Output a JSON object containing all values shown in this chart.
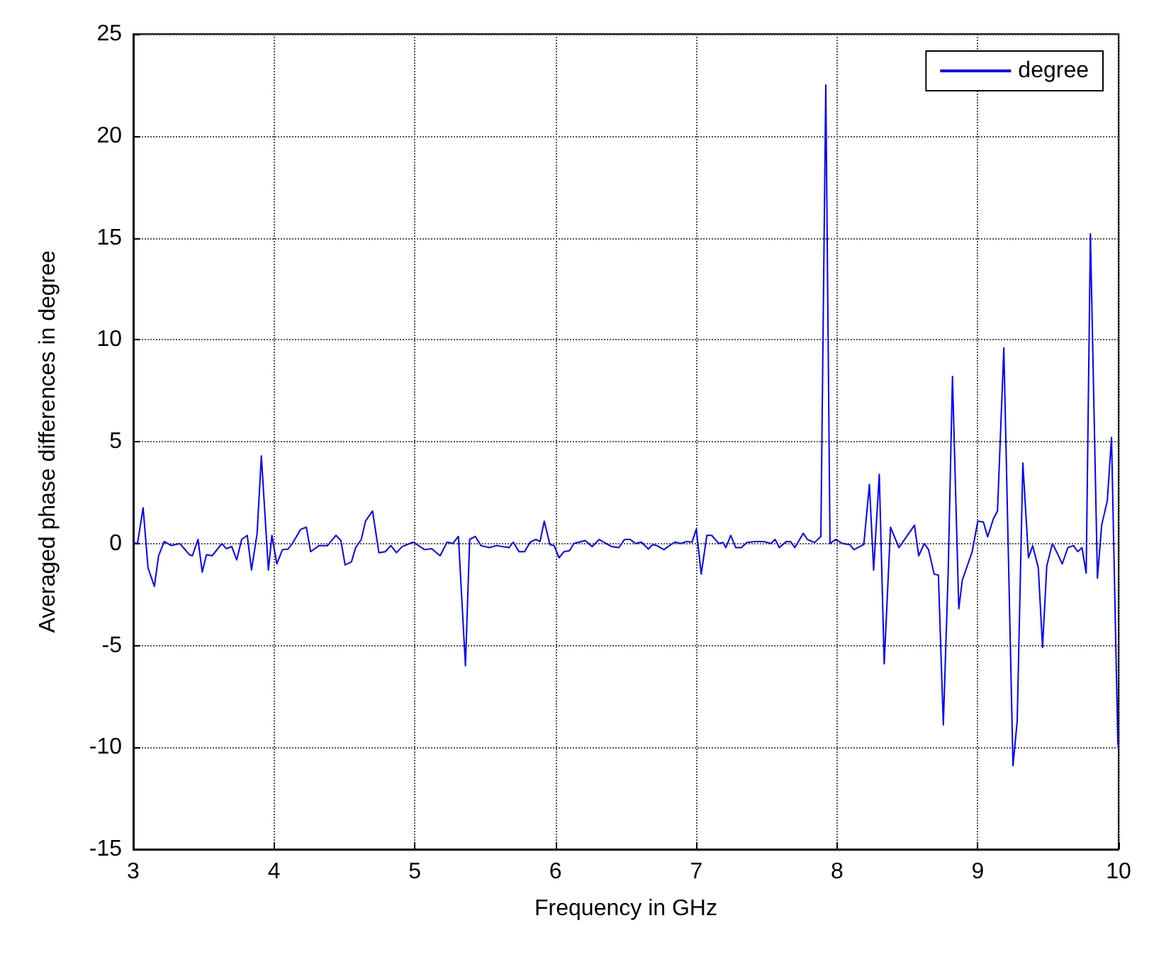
{
  "chart_data": {
    "type": "line",
    "xlabel": "Frequency in GHz",
    "ylabel": "Averaged phase differences in degree",
    "xlim": [
      3,
      10
    ],
    "ylim": [
      -15,
      25
    ],
    "xticks": [
      3,
      4,
      5,
      6,
      7,
      8,
      9,
      10
    ],
    "yticks": [
      -15,
      -10,
      -5,
      0,
      5,
      10,
      15,
      20,
      25
    ],
    "grid": true,
    "legend": "top right",
    "marker": "none",
    "line_style": "solid",
    "series": [
      {
        "name": "degree",
        "color": "#0000ff",
        "x": [
          3.0,
          3.03,
          3.07,
          3.105,
          3.15,
          3.18,
          3.22,
          3.27,
          3.33,
          3.4,
          3.42,
          3.46,
          3.49,
          3.52,
          3.56,
          3.63,
          3.66,
          3.7,
          3.735,
          3.77,
          3.81,
          3.84,
          3.88,
          3.91,
          3.96,
          3.985,
          4.02,
          4.06,
          4.1,
          4.13,
          4.19,
          4.23,
          4.26,
          4.32,
          4.38,
          4.44,
          4.475,
          4.505,
          4.55,
          4.58,
          4.62,
          4.65,
          4.7,
          4.745,
          4.79,
          4.83,
          4.87,
          4.91,
          4.99,
          5.07,
          5.12,
          5.18,
          5.23,
          5.27,
          5.31,
          5.36,
          5.39,
          5.43,
          5.47,
          5.53,
          5.58,
          5.67,
          5.7,
          5.74,
          5.78,
          5.82,
          5.86,
          5.89,
          5.92,
          5.96,
          5.99,
          6.025,
          6.06,
          6.1,
          6.13,
          6.21,
          6.26,
          6.31,
          6.36,
          6.4,
          6.45,
          6.49,
          6.53,
          6.57,
          6.61,
          6.66,
          6.69,
          6.72,
          6.77,
          6.82,
          6.85,
          6.89,
          6.93,
          6.97,
          7.0,
          7.035,
          7.075,
          7.11,
          7.16,
          7.19,
          7.21,
          7.245,
          7.28,
          7.32,
          7.36,
          7.42,
          7.48,
          7.53,
          7.56,
          7.59,
          7.64,
          7.67,
          7.7,
          7.76,
          7.79,
          7.84,
          7.885,
          7.92,
          7.95,
          7.99,
          8.04,
          8.09,
          8.12,
          8.19,
          8.23,
          8.26,
          8.3,
          8.335,
          8.38,
          8.44,
          8.55,
          8.58,
          8.62,
          8.65,
          8.69,
          8.72,
          8.755,
          8.79,
          8.82,
          8.865,
          8.89,
          8.93,
          8.96,
          9.0,
          9.04,
          9.07,
          9.11,
          9.14,
          9.185,
          9.25,
          9.28,
          9.32,
          9.36,
          9.39,
          9.43,
          9.46,
          9.49,
          9.53,
          9.57,
          9.6,
          9.64,
          9.68,
          9.71,
          9.74,
          9.77,
          9.8,
          9.85,
          9.88,
          9.92,
          9.95,
          9.995,
          10.0
        ],
        "values": [
          0.05,
          0,
          1.75,
          -1.2,
          -2.1,
          -0.6,
          0.1,
          -0.1,
          0,
          -0.55,
          -0.6,
          0.2,
          -1.4,
          -0.55,
          -0.6,
          0,
          -0.25,
          -0.15,
          -0.8,
          0.2,
          0.4,
          -1.3,
          0.5,
          4.3,
          -1.3,
          0.4,
          -1.0,
          -0.3,
          -0.27,
          0,
          0.7,
          0.8,
          -0.4,
          -0.1,
          -0.1,
          0.4,
          0.15,
          -1.05,
          -0.9,
          -0.2,
          0.2,
          1.1,
          1.6,
          -0.45,
          -0.4,
          -0.1,
          -0.45,
          -0.15,
          0.07,
          -0.3,
          -0.25,
          -0.6,
          0.07,
          0,
          0.35,
          -6.0,
          0.2,
          0.35,
          -0.1,
          -0.2,
          -0.1,
          -0.2,
          0.07,
          -0.4,
          -0.4,
          0.07,
          0.2,
          0.1,
          1.1,
          -0.05,
          -0.1,
          -0.7,
          -0.4,
          -0.35,
          0,
          0.15,
          -0.15,
          0.2,
          0,
          -0.15,
          -0.2,
          0.2,
          0.2,
          0,
          0.07,
          -0.27,
          -0.05,
          -0.1,
          -0.3,
          -0.05,
          0.07,
          0,
          0.1,
          0.07,
          0.7,
          -1.5,
          0.4,
          0.4,
          0,
          0.05,
          -0.2,
          0.4,
          -0.2,
          -0.2,
          0.05,
          0.1,
          0.1,
          0,
          0.2,
          -0.2,
          0.1,
          0.1,
          -0.2,
          0.5,
          0.2,
          0.05,
          0.35,
          22.5,
          0,
          0.2,
          0,
          -0.05,
          -0.3,
          -0.05,
          2.9,
          -1.3,
          3.4,
          -5.9,
          0.8,
          -0.2,
          0.9,
          -0.6,
          0,
          -0.3,
          -1.5,
          -1.55,
          -8.9,
          -1.3,
          8.2,
          -3.2,
          -1.8,
          -1.0,
          -0.4,
          1.1,
          1.05,
          0.33,
          1.2,
          1.6,
          9.6,
          -10.9,
          -8.7,
          3.95,
          -0.7,
          -0.1,
          -1.2,
          -5.1,
          -1.1,
          0,
          -0.55,
          -1.0,
          -0.2,
          -0.1,
          -0.4,
          -0.2,
          -1.45,
          15.2,
          -1.7,
          0.9,
          2.1,
          5.2,
          -9.8,
          -10.0
        ]
      }
    ]
  }
}
